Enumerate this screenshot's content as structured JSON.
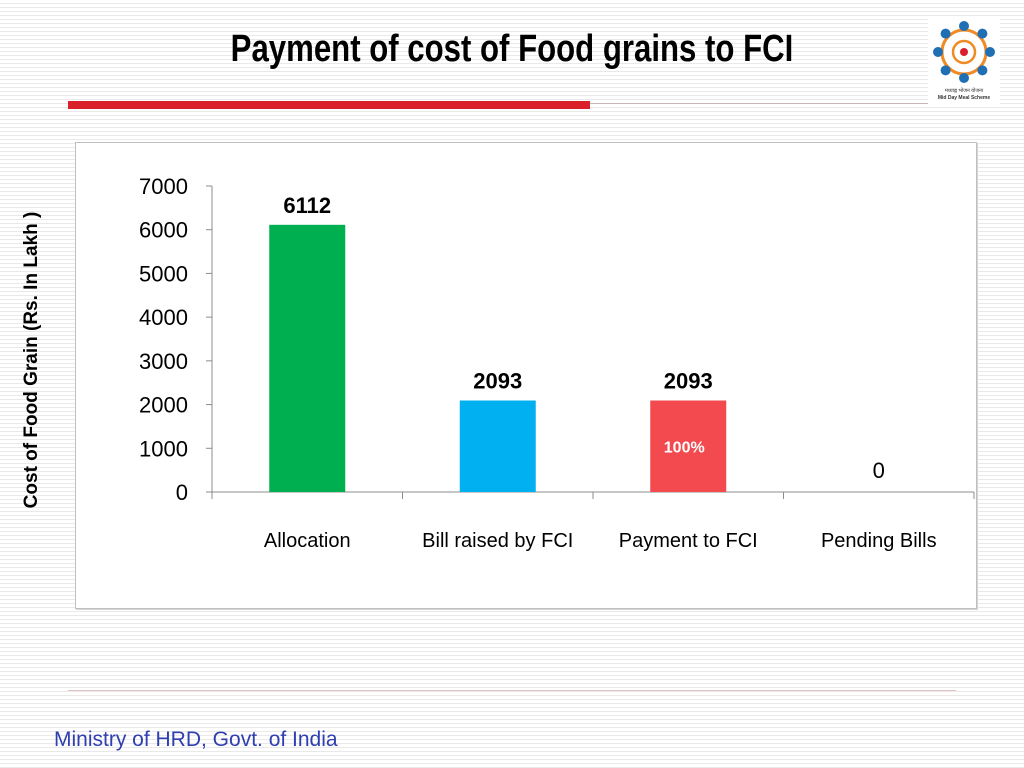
{
  "slide": {
    "title": "Payment of cost of Food grains to FCI",
    "footer": "Ministry of HRD, Govt. of India",
    "logo_text_hindi": "मध्याह्न भोजन योजना",
    "logo_text_english": "Mid Day Meal Scheme"
  },
  "chart_data": {
    "type": "bar",
    "title": "",
    "xlabel": "",
    "ylabel": "Cost of Food Grain (Rs. In Lakh )",
    "ylim": [
      0,
      7000
    ],
    "yticks": [
      0,
      1000,
      2000,
      3000,
      4000,
      5000,
      6000,
      7000
    ],
    "categories": [
      "Allocation",
      "Bill raised by FCI",
      "Payment to FCI",
      "Pending Bills"
    ],
    "values": [
      6112,
      2093,
      2093,
      0
    ],
    "data_labels": [
      "6112",
      "2093",
      "2093",
      "0"
    ],
    "bar_colors": [
      "#00b050",
      "#00b0f0",
      "#f24a4f",
      "#ffffff"
    ],
    "annotation": "100%",
    "annotation_color": "#ffffff",
    "grid": false,
    "legend": "none"
  }
}
